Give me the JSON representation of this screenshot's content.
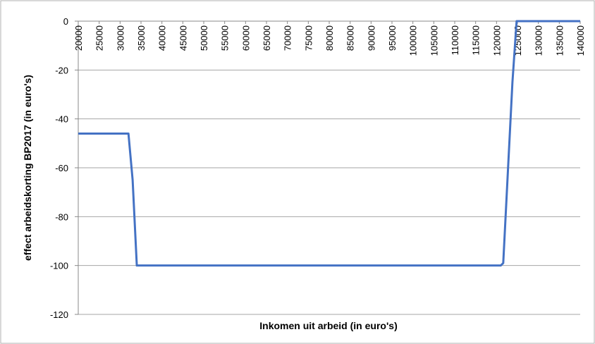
{
  "chart_data": {
    "type": "line",
    "xlabel": "Inkomen uit arbeid (in euro's)",
    "ylabel": "effect arbeidskorting BP2017 (in euro's)",
    "x": [
      20000,
      32000,
      33000,
      34000,
      121000,
      121600,
      123800,
      124800,
      140000
    ],
    "series": [
      {
        "name": "effect arbeidskorting",
        "color": "#4472c4",
        "values": [
          -46,
          -46,
          -65,
          -100,
          -100,
          -99,
          -25,
          0,
          0
        ]
      }
    ],
    "xlim": [
      20000,
      140000
    ],
    "xticks": [
      20000,
      25000,
      30000,
      35000,
      40000,
      45000,
      50000,
      55000,
      60000,
      65000,
      70000,
      75000,
      80000,
      85000,
      90000,
      95000,
      100000,
      105000,
      110000,
      115000,
      120000,
      125000,
      130000,
      135000,
      140000
    ],
    "ylim": [
      -120,
      0
    ],
    "yticks": [
      0,
      -20,
      -40,
      -60,
      -80,
      -100,
      -120
    ],
    "grid": true
  }
}
